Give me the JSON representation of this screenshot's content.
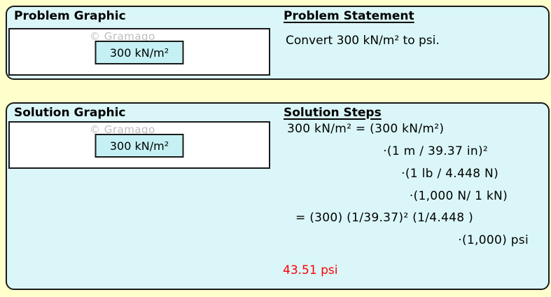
{
  "colors": {
    "page_bg": "#FFFFCC",
    "panel_fill": "#DAF6F8",
    "panel_border": "#1A1A1A",
    "label_fill": "#C5F1F5",
    "text": "#000000",
    "result": "#FF0000",
    "watermark": "#BDBDBD"
  },
  "problem_panel": {
    "graphic_title": "Problem Graphic",
    "watermark": "© Gramago",
    "graphic_label": "300 kN/m²",
    "statement_title": "Problem Statement",
    "statement_text": "Convert 300 kN/m² to psi."
  },
  "solution_panel": {
    "graphic_title": "Solution Graphic",
    "watermark": "© Gramago",
    "graphic_label": "300 kN/m²",
    "steps_title": "Solution Steps",
    "steps": [
      "300 kN/m² = (300 kN/m²)",
      "·(1 m / 39.37 in)²",
      "·(1 lb / 4.448 N)",
      "·(1,000 N/ 1 kN)",
      "= (300) (1/39.37)² (1/4.448 )",
      "·(1,000) psi"
    ],
    "result": "43.51 psi"
  }
}
